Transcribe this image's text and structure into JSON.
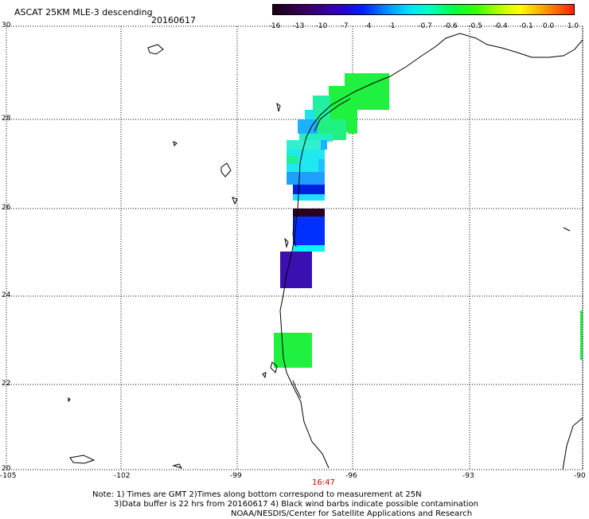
{
  "header": {
    "title": "ASCAT 25KM MLE-3 descending",
    "date": "20160617"
  },
  "colorbar": {
    "labels": [
      "-16",
      "-13",
      "-10",
      "-7",
      "-4",
      "-1",
      "-0.7",
      "-0.6",
      "-0.5",
      "-0.4",
      "-0.1",
      "0.0",
      "1.0"
    ],
    "colors": [
      "#2a0020",
      "#3a0066",
      "#3000c8",
      "#0020ff",
      "#0090ff",
      "#00e0ff",
      "#00ffc0",
      "#00ff40",
      "#40ff00",
      "#c0ff00",
      "#ffff00",
      "#ffa000",
      "#ff2000"
    ]
  },
  "axes": {
    "lat_labels": [
      "30",
      "28",
      "26",
      "24",
      "22",
      "20"
    ],
    "lon_labels": [
      "-105",
      "-102",
      "-99",
      "-96",
      "-93",
      "-90"
    ]
  },
  "footer": {
    "time": "16:47",
    "note_line1": "Note: 1) Times are GMT 2)Times along bottom correspond to measurement at 25N",
    "note_line2": "3)Data buffer is 22 hrs from 20160617 4) Black wind barbs indicate possible contamination",
    "note_line3": "NOAA/NESDIS/Center for Satellite Applications and Research"
  }
}
